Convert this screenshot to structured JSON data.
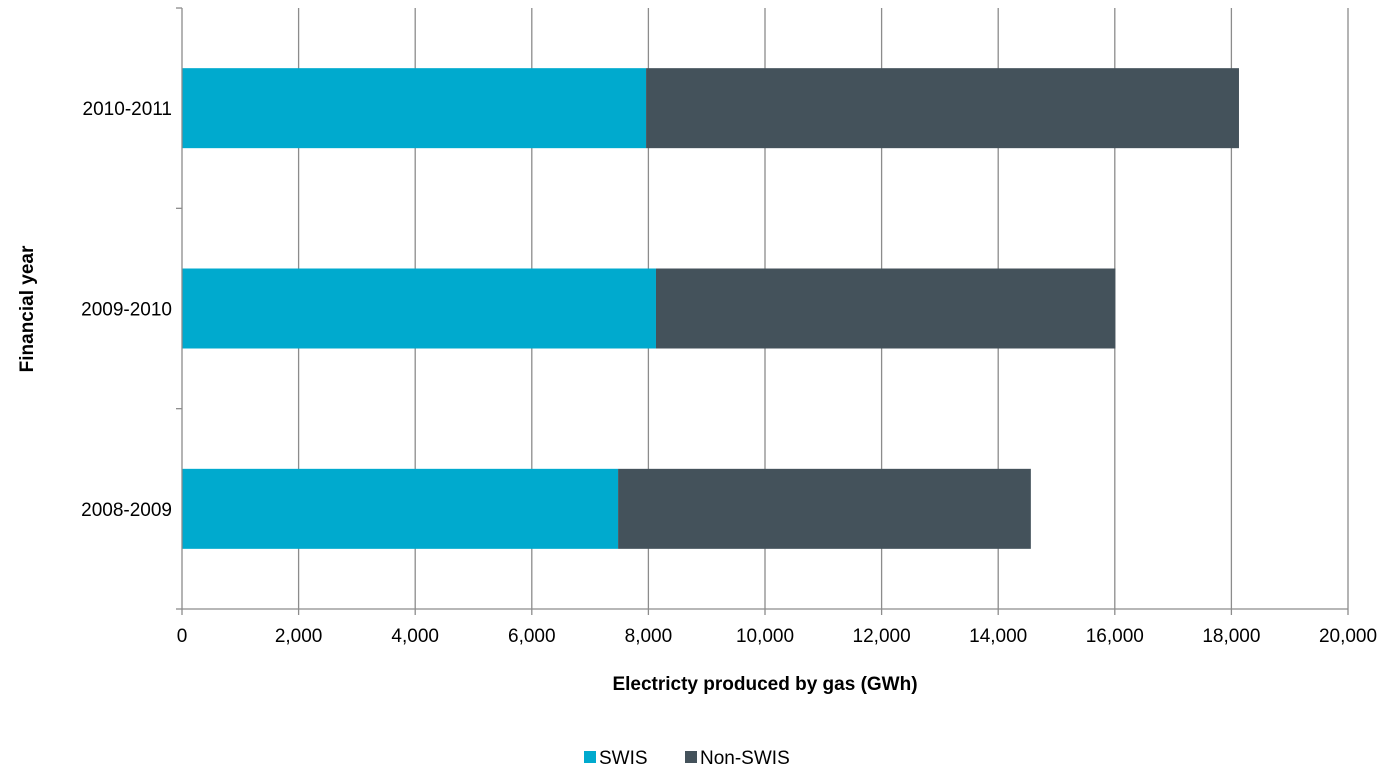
{
  "chart_data": {
    "type": "bar",
    "orientation": "horizontal",
    "stacked": true,
    "categories": [
      "2008-2009",
      "2009-2010",
      "2010-2011"
    ],
    "series": [
      {
        "name": "SWIS",
        "values": [
          7480,
          8130,
          7960
        ],
        "color": "#00AACE"
      },
      {
        "name": "Non-SWIS",
        "values": [
          7080,
          7880,
          10170
        ],
        "color": "#44525B"
      }
    ],
    "xlabel": "Electricty produced by gas (GWh)",
    "ylabel": "Financial year",
    "xlim": [
      0,
      20000
    ],
    "xticks": [
      "0",
      "2,000",
      "4,000",
      "6,000",
      "8,000",
      "10,000",
      "12,000",
      "14,000",
      "16,000",
      "18,000",
      "20,000"
    ],
    "grid": "vertical",
    "legend": "bottom-center"
  }
}
